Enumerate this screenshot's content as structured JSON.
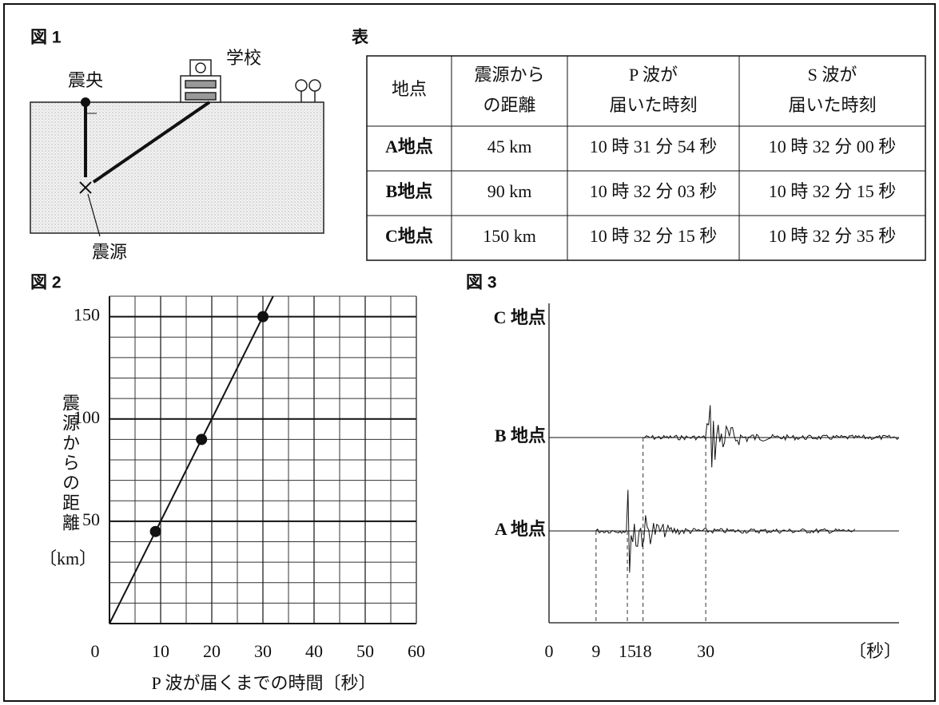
{
  "figure1": {
    "label": "図 1",
    "epicenter": "震央",
    "school": "学校",
    "focus": "震源"
  },
  "table": {
    "title": "表",
    "header": [
      [
        "地点"
      ],
      [
        "震源から",
        "の距離"
      ],
      [
        "P 波が",
        "届いた時刻"
      ],
      [
        "S 波が",
        "届いた時刻"
      ]
    ],
    "rows": [
      [
        "A地点",
        "45 km",
        "10 時 31 分 54 秒",
        "10 時 32 分 00 秒"
      ],
      [
        "B地点",
        "90 km",
        "10 時 32 分 03 秒",
        "10 時 32 分 15 秒"
      ],
      [
        "C地点",
        "150 km",
        "10 時 32 分 15 秒",
        "10 時 32 分 35 秒"
      ]
    ]
  },
  "figure2": {
    "type": "scatter",
    "label": "図 2",
    "ylabel": "震源からの距離",
    "yunit": "〔km〕",
    "xlabel": "P 波が届くまでの時間〔秒〕",
    "x": [
      9,
      18,
      30
    ],
    "values": [
      45,
      90,
      150
    ],
    "xlim": [
      0,
      60
    ],
    "ylim": [
      0,
      160
    ],
    "xticks": [
      0,
      10,
      20,
      30,
      40,
      50,
      60
    ],
    "yticks": [
      50,
      100,
      150
    ],
    "grid": true
  },
  "figure3": {
    "type": "seismogram",
    "label": "図 3",
    "unit": "〔秒〕",
    "xlim": [
      0,
      67
    ],
    "xticks": [
      0,
      9,
      15,
      18,
      30
    ],
    "stations": [
      {
        "name": "C 地点"
      },
      {
        "name": "B 地点",
        "p": 18,
        "s": 30
      },
      {
        "name": "A 地点",
        "p": 9,
        "s": 15
      }
    ]
  }
}
